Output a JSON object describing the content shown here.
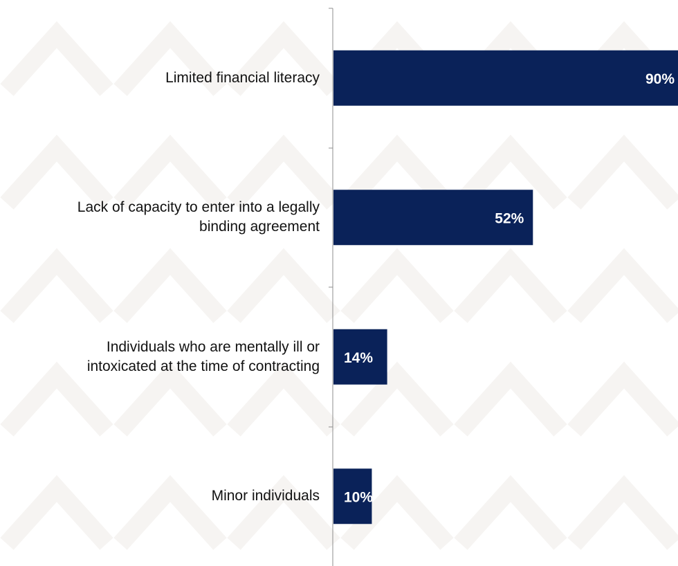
{
  "chart_data": {
    "type": "bar",
    "orientation": "horizontal",
    "categories": [
      "Limited financial literacy",
      "Lack of capacity to enter into a legally binding agreement",
      "Individuals who are mentally ill or intoxicated at the time of contracting",
      "Minor individuals"
    ],
    "category_label_lines": [
      [
        "Limited financial literacy"
      ],
      [
        "Lack of capacity to enter into a legally",
        "binding agreement"
      ],
      [
        "Individuals who are mentally ill or",
        "intoxicated at the time of contracting"
      ],
      [
        "Minor individuals"
      ]
    ],
    "values": [
      90,
      52,
      14,
      10
    ],
    "data_labels": [
      "90%",
      "52%",
      "14%",
      "10%"
    ],
    "xlim": [
      0,
      90
    ],
    "title": "",
    "xlabel": "",
    "ylabel": "",
    "grid": false,
    "legend": "none",
    "bar_color": "#0a2259",
    "label_color": "#ffffff",
    "axis_color": "#8c8c8c"
  }
}
